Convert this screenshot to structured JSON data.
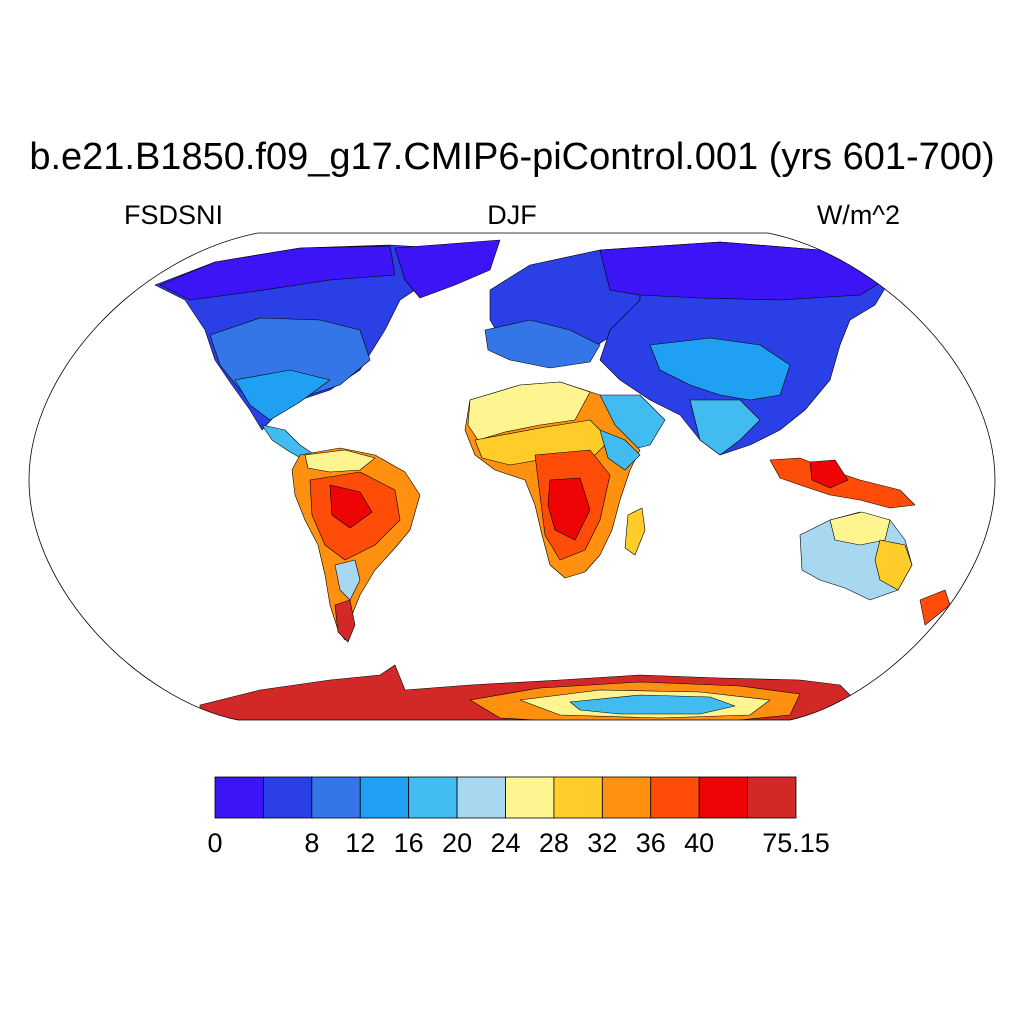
{
  "title": "b.e21.B1850.f09_g17.CMIP6-piControl.001 (yrs 601-700)",
  "subtitle_left": "FSDSNI",
  "subtitle_center": "DJF",
  "subtitle_right": "W/m^2",
  "map": {
    "projection": "Robinson",
    "field": "FSDSNI",
    "season": "DJF",
    "ocean_fill": "#ffffff",
    "coastlines": true
  },
  "colorbar": {
    "levels": [
      "0",
      "",
      "8",
      "12",
      "16",
      "20",
      "24",
      "28",
      "32",
      "36",
      "40",
      "",
      "75.15"
    ],
    "colors": [
      "#3c14f5",
      "#2a3fe6",
      "#3475e8",
      "#1fa0f2",
      "#42bcf0",
      "#a8d8ef",
      "#fff590",
      "#ffcc2a",
      "#ff9010",
      "#ff4c08",
      "#ee0404",
      "#d32828"
    ]
  }
}
